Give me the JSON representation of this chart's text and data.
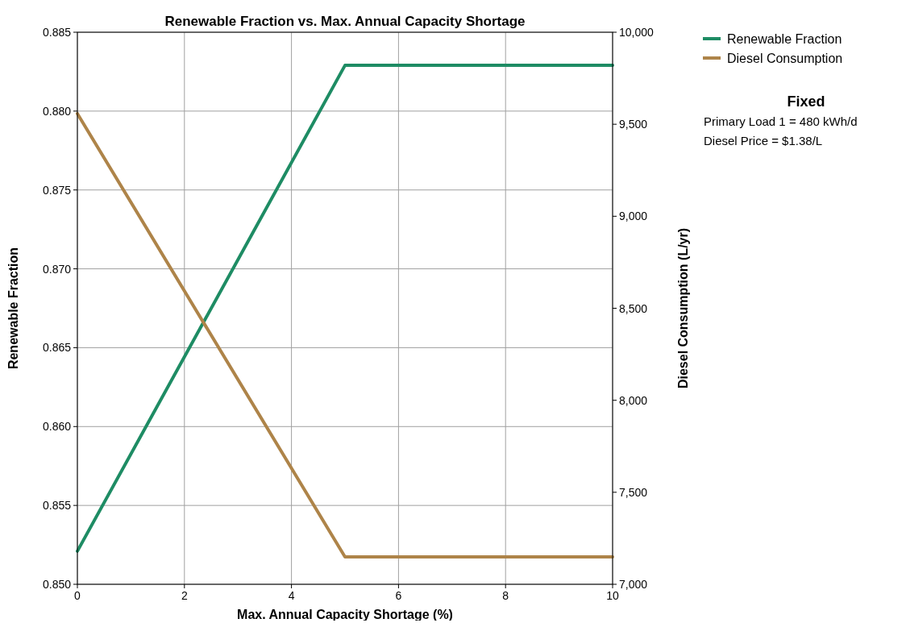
{
  "chart_data": {
    "type": "line",
    "title": "Renewable Fraction vs. Max. Annual Capacity Shortage",
    "xlabel": "Max. Annual Capacity Shortage (%)",
    "ylabel": "Renewable Fraction",
    "y2label": "Diesel Consumption (L/yr)",
    "x": [
      0,
      5,
      10
    ],
    "series": [
      {
        "name": "Renewable Fraction",
        "color": "#1e8c64",
        "values": [
          0.8521,
          0.8829,
          0.8829
        ]
      },
      {
        "name": "Diesel Consumption",
        "color": "#ae8449",
        "values": [
          9558,
          7149,
          7149
        ],
        "axis": "y2"
      }
    ],
    "xlim": [
      0,
      10
    ],
    "xticks": [
      0,
      2,
      4,
      6,
      8,
      10
    ],
    "ylim": [
      0.85,
      0.885
    ],
    "yticks": [
      {
        "value": 0.85,
        "label": "0.850"
      },
      {
        "value": 0.855,
        "label": "0.855"
      },
      {
        "value": 0.86,
        "label": "0.860"
      },
      {
        "value": 0.865,
        "label": "0.865"
      },
      {
        "value": 0.87,
        "label": "0.870"
      },
      {
        "value": 0.875,
        "label": "0.875"
      },
      {
        "value": 0.88,
        "label": "0.880"
      },
      {
        "value": 0.885,
        "label": "0.885"
      }
    ],
    "y2lim": [
      7000,
      10000
    ],
    "y2ticks": [
      {
        "value": 7000,
        "label": "7,000"
      },
      {
        "value": 7500,
        "label": "7,500"
      },
      {
        "value": 8000,
        "label": "8,000"
      },
      {
        "value": 8500,
        "label": "8,500"
      },
      {
        "value": 9000,
        "label": "9,000"
      },
      {
        "value": 9500,
        "label": "9,500"
      },
      {
        "value": 10000,
        "label": "10,000"
      }
    ],
    "grid": true,
    "legend": "right",
    "annotations": [
      "Fixed",
      "Primary Load 1 = 480 kWh/d",
      "Diesel Price = $1.38/L"
    ]
  }
}
